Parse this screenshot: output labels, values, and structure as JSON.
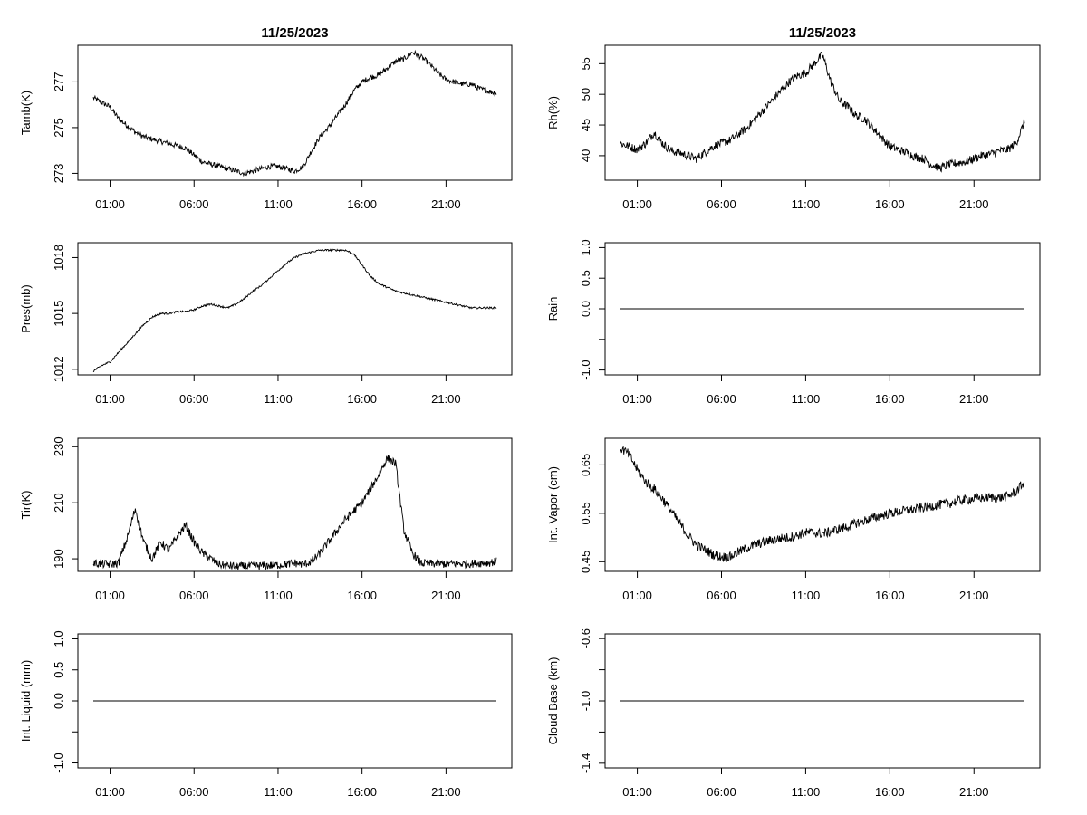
{
  "chart_data": [
    {
      "type": "line",
      "title": "11/25/2023",
      "xlabel": "",
      "ylabel": "Tamb(K)",
      "xticks": [
        "01:00",
        "06:00",
        "11:00",
        "16:00",
        "21:00"
      ],
      "xlim": [
        0,
        24
      ],
      "ylim": [
        272.7,
        278.6
      ],
      "yticks": [
        273,
        275,
        277
      ],
      "grid": false,
      "x": [
        0,
        0.5,
        1,
        1.5,
        2,
        2.5,
        3,
        3.5,
        4,
        4.5,
        5,
        5.5,
        6,
        6.5,
        7,
        7.5,
        8,
        8.5,
        9,
        9.5,
        10,
        10.5,
        11,
        11.5,
        12,
        12.5,
        13,
        13.5,
        14,
        14.5,
        15,
        15.5,
        16,
        16.5,
        17,
        17.5,
        18,
        18.5,
        19,
        19.5,
        20,
        20.5,
        21,
        21.5,
        22,
        22.5,
        23,
        23.5,
        24
      ],
      "y": [
        276.3,
        276.1,
        275.9,
        275.4,
        275.1,
        274.8,
        274.6,
        274.5,
        274.4,
        274.3,
        274.2,
        274.1,
        273.8,
        273.5,
        273.4,
        273.3,
        273.2,
        273.1,
        273.0,
        273.1,
        273.2,
        273.3,
        273.3,
        273.2,
        273.1,
        273.3,
        274.0,
        274.6,
        275.0,
        275.5,
        276.0,
        276.6,
        277.0,
        277.2,
        277.3,
        277.6,
        277.9,
        278.0,
        278.3,
        278.1,
        277.8,
        277.4,
        277.1,
        277.0,
        276.9,
        276.9,
        276.7,
        276.6,
        276.5
      ],
      "noise": 0.12
    },
    {
      "type": "line",
      "title": "11/25/2023",
      "xlabel": "",
      "ylabel": "Rh(%)",
      "xticks": [
        "01:00",
        "06:00",
        "11:00",
        "16:00",
        "21:00"
      ],
      "xlim": [
        0,
        24
      ],
      "ylim": [
        36,
        58
      ],
      "yticks": [
        40,
        45,
        50,
        55
      ],
      "grid": false,
      "x": [
        0,
        0.5,
        1,
        1.5,
        2,
        2.5,
        3,
        3.5,
        4,
        4.5,
        5,
        5.5,
        6,
        6.5,
        7,
        7.5,
        8,
        8.5,
        9,
        9.5,
        10,
        10.5,
        11,
        11.5,
        12,
        12.5,
        13,
        13.5,
        14,
        14.5,
        15,
        15.5,
        16,
        16.5,
        17,
        17.5,
        18,
        18.5,
        19,
        19.5,
        20,
        20.5,
        21,
        21.5,
        22,
        22.5,
        23,
        23.5,
        24
      ],
      "y": [
        42.0,
        41.5,
        41.0,
        42.0,
        43.8,
        42.0,
        40.8,
        40.5,
        40.0,
        39.5,
        40.5,
        41.5,
        42.0,
        42.5,
        43.5,
        44.5,
        46.0,
        47.5,
        49.0,
        50.5,
        52.0,
        53.0,
        53.5,
        55.0,
        56.5,
        52.0,
        49.0,
        48.0,
        46.5,
        46.0,
        44.5,
        43.0,
        41.5,
        41.0,
        40.5,
        39.8,
        39.5,
        38.5,
        38.0,
        38.5,
        38.8,
        39.0,
        39.5,
        40.0,
        40.3,
        40.8,
        41.0,
        42.0,
        45.5
      ],
      "noise": 0.7
    },
    {
      "type": "line",
      "title": "",
      "xlabel": "",
      "ylabel": "Pres(mb)",
      "xticks": [
        "01:00",
        "06:00",
        "11:00",
        "16:00",
        "21:00"
      ],
      "xlim": [
        0,
        24
      ],
      "ylim": [
        1011.7,
        1018.8
      ],
      "yticks": [
        1012,
        1015,
        1018
      ],
      "grid": false,
      "x": [
        0,
        0.5,
        1,
        1.5,
        2,
        2.5,
        3,
        3.5,
        4,
        4.5,
        5,
        5.5,
        6,
        6.5,
        7,
        7.5,
        8,
        8.5,
        9,
        9.5,
        10,
        10.5,
        11,
        11.5,
        12,
        12.5,
        13,
        13.5,
        14,
        14.5,
        15,
        15.5,
        16,
        16.5,
        17,
        17.5,
        18,
        18.5,
        19,
        19.5,
        20,
        20.5,
        21,
        21.5,
        22,
        22.5,
        23,
        23.5,
        24
      ],
      "y": [
        1011.9,
        1012.2,
        1012.4,
        1012.9,
        1013.4,
        1013.9,
        1014.4,
        1014.8,
        1015.0,
        1015.0,
        1015.1,
        1015.1,
        1015.2,
        1015.4,
        1015.5,
        1015.4,
        1015.3,
        1015.5,
        1015.8,
        1016.2,
        1016.5,
        1016.9,
        1017.3,
        1017.7,
        1018.0,
        1018.2,
        1018.3,
        1018.4,
        1018.4,
        1018.4,
        1018.4,
        1018.2,
        1017.6,
        1017.0,
        1016.6,
        1016.4,
        1016.2,
        1016.1,
        1016.0,
        1015.9,
        1015.8,
        1015.7,
        1015.6,
        1015.5,
        1015.4,
        1015.3,
        1015.3,
        1015.3,
        1015.3
      ],
      "noise": 0.05
    },
    {
      "type": "line",
      "title": "",
      "xlabel": "",
      "ylabel": "Rain",
      "xticks": [
        "01:00",
        "06:00",
        "11:00",
        "16:00",
        "21:00"
      ],
      "xlim": [
        0,
        24
      ],
      "ylim": [
        -1.08,
        1.08
      ],
      "yticks": [
        -1.0,
        -0.5,
        0.0,
        0.5,
        1.0
      ],
      "ytick_labels": [
        "-1.0",
        "",
        "0.0",
        "0.5",
        "1.0"
      ],
      "grid": false,
      "x": [
        0,
        24
      ],
      "y": [
        0,
        0
      ],
      "noise": 0
    },
    {
      "type": "line",
      "title": "",
      "xlabel": "",
      "ylabel": "Tir(K)",
      "xticks": [
        "01:00",
        "06:00",
        "11:00",
        "16:00",
        "21:00"
      ],
      "xlim": [
        0,
        24
      ],
      "ylim": [
        185.5,
        233
      ],
      "yticks": [
        190,
        210,
        230
      ],
      "grid": false,
      "x": [
        0,
        0.5,
        1,
        1.5,
        2,
        2.5,
        3,
        3.5,
        4,
        4.5,
        5,
        5.5,
        6,
        6.5,
        7,
        7.5,
        8,
        8.5,
        9,
        9.5,
        10,
        10.5,
        11,
        11.5,
        12,
        12.5,
        13,
        13.5,
        14,
        14.5,
        15,
        15.5,
        16,
        16.5,
        17,
        17.5,
        18,
        18.5,
        19,
        19.5,
        20,
        20.5,
        21,
        21.5,
        22,
        22.5,
        23,
        23.5,
        24
      ],
      "y": [
        188.5,
        188.2,
        188.0,
        188.5,
        197.0,
        208.0,
        196.0,
        190.0,
        196.0,
        193.0,
        198.0,
        202.0,
        196.0,
        192.0,
        190.0,
        188.0,
        187.5,
        187.3,
        187.3,
        187.4,
        187.5,
        187.6,
        187.8,
        188.0,
        188.5,
        188.0,
        189.0,
        192.0,
        196.0,
        200.0,
        204.0,
        207.0,
        210.0,
        215.0,
        220.0,
        226.0,
        224.0,
        200.0,
        192.0,
        188.5,
        188.3,
        188.2,
        188.2,
        188.3,
        188.2,
        188.3,
        188.5,
        188.6,
        189.0
      ],
      "noise": 1.5
    },
    {
      "type": "line",
      "title": "",
      "xlabel": "",
      "ylabel": "Int. Vapor (cm)",
      "xticks": [
        "01:00",
        "06:00",
        "11:00",
        "16:00",
        "21:00"
      ],
      "xlim": [
        0,
        24
      ],
      "ylim": [
        0.43,
        0.705
      ],
      "yticks": [
        0.45,
        0.55,
        0.65
      ],
      "grid": false,
      "x": [
        0,
        0.5,
        1,
        1.5,
        2,
        2.5,
        3,
        3.5,
        4,
        4.5,
        5,
        5.5,
        6,
        6.5,
        7,
        7.5,
        8,
        8.5,
        9,
        9.5,
        10,
        10.5,
        11,
        11.5,
        12,
        12.5,
        13,
        13.5,
        14,
        14.5,
        15,
        15.5,
        16,
        16.5,
        17,
        17.5,
        18,
        18.5,
        19,
        19.5,
        20,
        20.5,
        21,
        21.5,
        22,
        22.5,
        23,
        23.5,
        24
      ],
      "y": [
        0.685,
        0.672,
        0.64,
        0.615,
        0.6,
        0.58,
        0.555,
        0.53,
        0.505,
        0.485,
        0.475,
        0.465,
        0.46,
        0.46,
        0.47,
        0.478,
        0.485,
        0.49,
        0.495,
        0.498,
        0.5,
        0.505,
        0.51,
        0.51,
        0.508,
        0.512,
        0.518,
        0.522,
        0.53,
        0.535,
        0.54,
        0.545,
        0.55,
        0.553,
        0.556,
        0.558,
        0.562,
        0.565,
        0.568,
        0.57,
        0.575,
        0.578,
        0.58,
        0.582,
        0.583,
        0.582,
        0.585,
        0.595,
        0.615
      ],
      "noise": 0.01
    },
    {
      "type": "line",
      "title": "",
      "xlabel": "",
      "ylabel": "Int. Liquid (mm)",
      "xticks": [
        "01:00",
        "06:00",
        "11:00",
        "16:00",
        "21:00"
      ],
      "xlim": [
        0,
        24
      ],
      "ylim": [
        -1.08,
        1.08
      ],
      "yticks": [
        -1.0,
        -0.5,
        0.0,
        0.5,
        1.0
      ],
      "ytick_labels": [
        "-1.0",
        "",
        "0.0",
        "0.5",
        "1.0"
      ],
      "grid": false,
      "x": [
        0,
        24
      ],
      "y": [
        0,
        0
      ],
      "noise": 0
    },
    {
      "type": "line",
      "title": "",
      "xlabel": "",
      "ylabel": "Cloud Base (km)",
      "xticks": [
        "01:00",
        "06:00",
        "11:00",
        "16:00",
        "21:00"
      ],
      "xlim": [
        0,
        24
      ],
      "ylim": [
        -1.43,
        -0.57
      ],
      "yticks": [
        -1.4,
        -1.2,
        -1.0,
        -0.8,
        -0.6
      ],
      "ytick_labels": [
        "-1.4",
        "",
        "-1.0",
        "",
        "-0.6"
      ],
      "grid": false,
      "x": [
        0,
        24
      ],
      "y": [
        -1.0,
        -1.0
      ],
      "noise": 0
    }
  ]
}
